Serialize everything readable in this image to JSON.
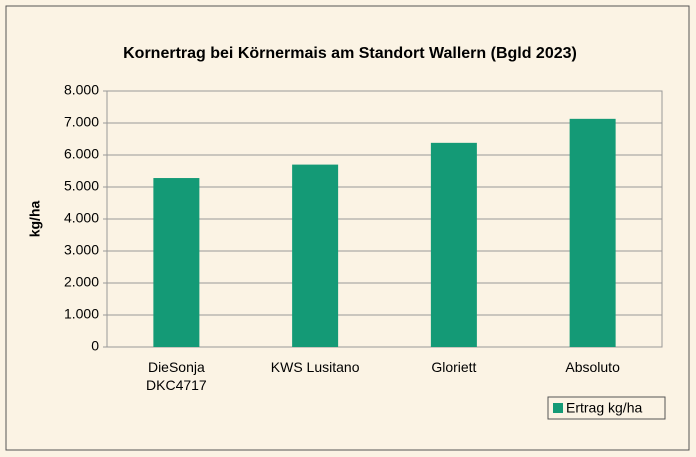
{
  "chart_data": {
    "type": "bar",
    "title": "Kornertrag bei Körnermais am Standort Wallern (Bgld 2023)",
    "y_label": "kg/ha",
    "categories": [
      "DieSonja\nDKC4717",
      "KWS Lusitano",
      "Gloriett",
      "Absoluto"
    ],
    "series": [
      {
        "name": "Ertrag kg/ha",
        "color": "#149a76",
        "values": [
          5280,
          5700,
          6380,
          7130
        ]
      }
    ],
    "ylim": [
      0,
      8000
    ],
    "yticks": [
      0,
      {
        "value": 1000,
        "label": "1.000"
      },
      {
        "value": 2000,
        "label": "2.000"
      },
      {
        "value": 3000,
        "label": "3.000"
      },
      {
        "value": 4000,
        "label": "4.000"
      },
      {
        "value": 5000,
        "label": "5.000"
      },
      {
        "value": 6000,
        "label": "6.000"
      },
      {
        "value": 7000,
        "label": "7.000"
      },
      {
        "value": 8000,
        "label": "8.000"
      }
    ],
    "grid": true,
    "legend": "bottom-right"
  }
}
